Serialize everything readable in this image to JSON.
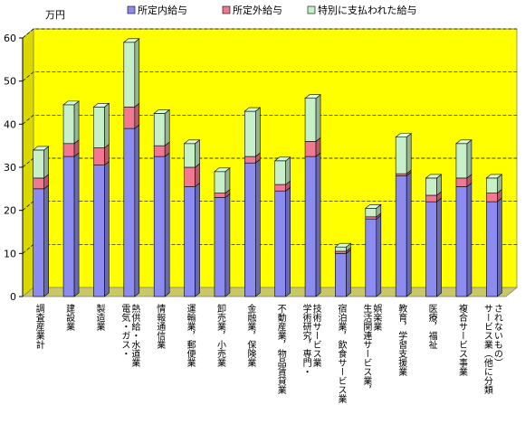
{
  "chart_data": {
    "type": "bar",
    "stacked": true,
    "three_d": true,
    "title": "",
    "unit": "万円",
    "xlabel": "",
    "ylabel": "",
    "ylim": [
      0,
      60
    ],
    "yticks": [
      0,
      10,
      20,
      30,
      40,
      50,
      60
    ],
    "grid": true,
    "legend": "top",
    "categories": [
      [
        "調査産業計"
      ],
      [
        "建設業"
      ],
      [
        "製造業"
      ],
      [
        "電気・ガス・",
        "熱供給・水道業"
      ],
      [
        "情報通信業"
      ],
      [
        "運輸業，郵便業"
      ],
      [
        "卸売業，小売業"
      ],
      [
        "金融業，保険業"
      ],
      [
        "不動産業，物品賃貸業"
      ],
      [
        "学術研究，専門・",
        "技術サービス業"
      ],
      [
        "宿泊業，飲食サービス業"
      ],
      [
        "生活関連サービス業，",
        "娯楽業"
      ],
      [
        "教育，学習支援業"
      ],
      [
        "医療，福祉"
      ],
      [
        "複合サービス事業"
      ],
      [
        "サービス業（他に分類",
        "されないもの）"
      ]
    ],
    "series": [
      {
        "name": "所定内給与",
        "color": "#8c8cf0",
        "values": [
          25.0,
          32.5,
          30.5,
          39.0,
          32.5,
          25.5,
          23.0,
          31.0,
          24.5,
          32.5,
          10.0,
          18.0,
          28.0,
          22.0,
          25.5,
          22.0
        ]
      },
      {
        "name": "所定外給与",
        "color": "#f07890",
        "values": [
          2.5,
          3.0,
          4.0,
          5.0,
          2.5,
          4.5,
          1.0,
          1.5,
          1.5,
          3.5,
          0.5,
          0.5,
          0.5,
          1.5,
          2.0,
          2.0
        ]
      },
      {
        "name": "特別に支払われた給与",
        "color": "#c8f0c8",
        "values": [
          6.5,
          9.0,
          9.5,
          15.0,
          7.5,
          5.5,
          5.0,
          10.5,
          5.5,
          10.0,
          1.0,
          2.0,
          8.5,
          4.0,
          8.0,
          3.5
        ]
      }
    ],
    "colors": {
      "plot_wall": "#ffff00",
      "plot_floor": "#c8c864",
      "gridline": "#000000",
      "axis": "#000000"
    }
  }
}
